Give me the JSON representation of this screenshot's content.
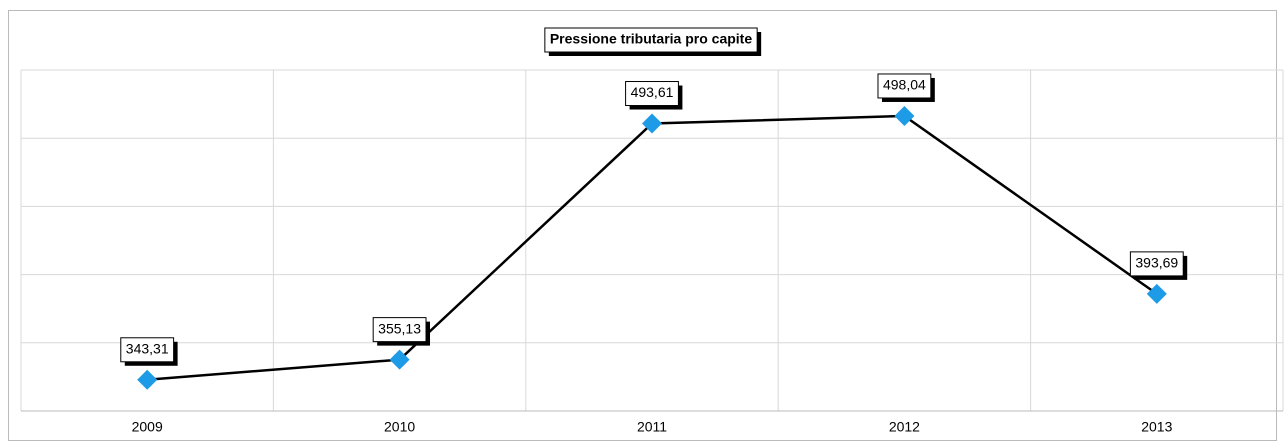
{
  "chart_data": {
    "type": "line",
    "title": "Pressione tributaria pro capite",
    "categories": [
      "2009",
      "2010",
      "2011",
      "2012",
      "2013"
    ],
    "series": [
      {
        "name": "Pressione tributaria pro capite",
        "color": "#000000",
        "marker_color": "#1e9be6",
        "values": [
          343.31,
          355.13,
          493.61,
          498.04,
          393.69
        ],
        "value_labels": [
          "343,31",
          "355,13",
          "493,61",
          "498,04",
          "393,69"
        ]
      }
    ],
    "ylim": [
      325,
      525
    ],
    "yticks": [
      325,
      365,
      405,
      445,
      485,
      525
    ],
    "grid": true
  }
}
